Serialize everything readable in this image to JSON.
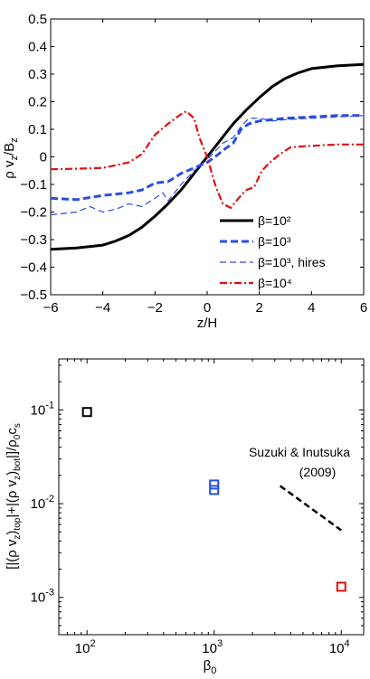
{
  "chart_data": [
    {
      "type": "line",
      "xlabel": "z/H",
      "ylabel": "ρ v_z/B_z",
      "xlim": [
        -6,
        6
      ],
      "ylim": [
        -0.5,
        0.5
      ],
      "xticks": [
        "−6",
        "−4",
        "−2",
        "0",
        "2",
        "4",
        "6"
      ],
      "yticks": [
        "−0.5",
        "−0.4",
        "−0.3",
        "−0.2",
        "−0.1",
        "0",
        "0.1",
        "0.2",
        "0.3",
        "0.4",
        "0.5"
      ],
      "grid": false,
      "legend_position": "bottom-right",
      "series": [
        {
          "name": "β=10²",
          "color": "#000000",
          "style": "solid",
          "x": [
            -6,
            -5,
            -4,
            -3.5,
            -3,
            -2.5,
            -2,
            -1.5,
            -1,
            -0.5,
            0,
            0.5,
            1,
            1.5,
            2,
            2.5,
            3,
            3.5,
            4,
            5,
            6
          ],
          "y": [
            -0.335,
            -0.33,
            -0.32,
            -0.305,
            -0.285,
            -0.255,
            -0.215,
            -0.17,
            -0.12,
            -0.06,
            0,
            0.06,
            0.12,
            0.17,
            0.215,
            0.255,
            0.285,
            0.305,
            0.32,
            0.33,
            0.335
          ]
        },
        {
          "name": "β=10³",
          "color": "#2a4de0",
          "style": "dashed",
          "x": [
            -6,
            -5,
            -4,
            -3.5,
            -3,
            -2.5,
            -2,
            -1.5,
            -1,
            -0.5,
            0,
            0.3,
            0.7,
            1,
            1.3,
            1.6,
            2,
            2.5,
            3,
            4,
            5,
            6
          ],
          "y": [
            -0.15,
            -0.155,
            -0.14,
            -0.135,
            -0.13,
            -0.12,
            -0.095,
            -0.09,
            -0.06,
            -0.04,
            -0.02,
            0,
            0.03,
            0.05,
            0.1,
            0.12,
            0.13,
            0.135,
            0.14,
            0.145,
            0.15,
            0.15
          ]
        },
        {
          "name": "β=10³, hires",
          "color": "#2a4de0",
          "style": "thin-dashed",
          "x": [
            -6,
            -5,
            -4.5,
            -4,
            -3.5,
            -3,
            -2.5,
            -2,
            -1.7,
            -1.5,
            -1,
            -0.5,
            0,
            0.3,
            0.6,
            1,
            1.3,
            1.6,
            2,
            2.5,
            3,
            4,
            5,
            6
          ],
          "y": [
            -0.21,
            -0.2,
            -0.18,
            -0.2,
            -0.19,
            -0.17,
            -0.18,
            -0.15,
            -0.13,
            -0.16,
            -0.1,
            -0.05,
            -0.01,
            0.02,
            0.05,
            0.07,
            0.11,
            0.14,
            0.14,
            0.13,
            0.135,
            0.14,
            0.145,
            0.15
          ]
        },
        {
          "name": "β=10⁴",
          "color": "#e01010",
          "style": "dashdot",
          "x": [
            -6,
            -5,
            -4,
            -3.5,
            -3,
            -2.5,
            -2,
            -1.5,
            -1,
            -0.8,
            -0.5,
            -0.3,
            0,
            0.3,
            0.6,
            0.9,
            1.2,
            1.5,
            1.8,
            2.1,
            2.4,
            2.8,
            3.2,
            4,
            5,
            6
          ],
          "y": [
            -0.045,
            -0.043,
            -0.04,
            -0.03,
            -0.02,
            0.01,
            0.08,
            0.12,
            0.155,
            0.165,
            0.14,
            0.07,
            0,
            -0.1,
            -0.17,
            -0.185,
            -0.15,
            -0.12,
            -0.11,
            -0.05,
            -0.02,
            0.01,
            0.035,
            0.04,
            0.045,
            0.045
          ]
        }
      ]
    },
    {
      "type": "scatter",
      "xlabel": "β_0",
      "ylabel": "[|(ρ v_z)_top|+|(ρ v_z)_bot|]/ρ_0c_s",
      "xscale": "log",
      "yscale": "log",
      "xlim": [
        60,
        15000
      ],
      "ylim": [
        0.0004,
        0.35
      ],
      "xticks": [
        100,
        1000,
        10000
      ],
      "yticks": [
        0.001,
        0.01,
        0.1
      ],
      "grid": false,
      "points": [
        {
          "x": 100,
          "y": 0.095,
          "color": "#000000",
          "marker": "square"
        },
        {
          "x": 1000,
          "y": 0.016,
          "color": "#2a4de0",
          "marker": "square"
        },
        {
          "x": 1000,
          "y": 0.014,
          "color": "#2a4de0",
          "marker": "square"
        },
        {
          "x": 10000,
          "y": 0.0013,
          "color": "#e01010",
          "marker": "square"
        }
      ],
      "reference_line": {
        "x": [
          3300,
          10000
        ],
        "y": [
          0.0155,
          0.0052
        ],
        "color": "#000000",
        "style": "dashed"
      },
      "annotation_line1": "Suzuki & Inutsuka",
      "annotation_line2": "(2009)"
    }
  ]
}
